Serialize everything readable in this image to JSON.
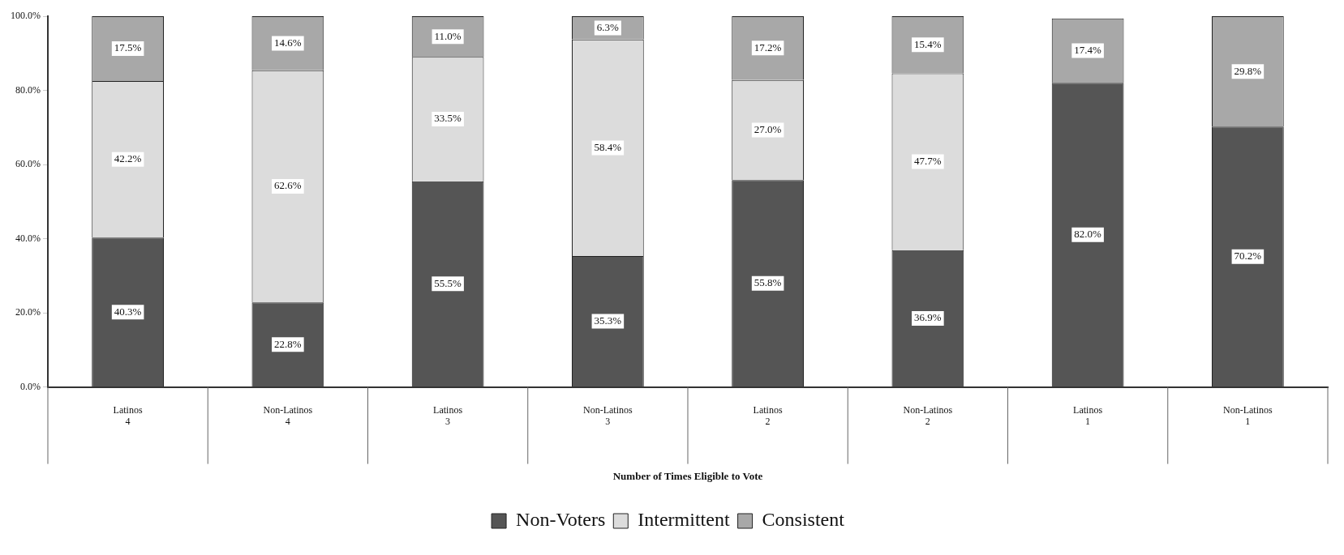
{
  "chart_data": {
    "type": "bar",
    "stacked": true,
    "xlabel": "Number of Times Eligible to Vote",
    "categories": [
      "Latinos\n4",
      "Non-Latinos\n4",
      "Latinos\n3",
      "Non-Latinos\n3",
      "Latinos\n2",
      "Non-Latinos\n2",
      "Latinos\n1",
      "Non-Latinos\n1"
    ],
    "series": [
      {
        "name": "Non-Voters",
        "color": "#555555",
        "values": [
          40.3,
          22.8,
          55.5,
          35.3,
          55.8,
          36.9,
          82.0,
          70.2
        ],
        "value_labels": [
          "40.3%",
          "22.8%",
          "55.5%",
          "35.3%",
          "55.8%",
          "36.9%",
          "82.0%",
          "70.2%"
        ]
      },
      {
        "name": "Intermittent",
        "color": "#dcdcdc",
        "values": [
          42.2,
          62.6,
          33.5,
          58.4,
          27.0,
          47.7,
          null,
          null
        ],
        "value_labels": [
          "42.2%",
          "62.6%",
          "33.5%",
          "58.4%",
          "27.0%",
          "47.7%",
          null,
          null
        ]
      },
      {
        "name": "Consistent",
        "color": "#a8a8a8",
        "values": [
          17.5,
          14.6,
          11.0,
          6.3,
          17.2,
          15.4,
          17.4,
          29.8
        ],
        "value_labels": [
          "17.5%",
          "14.6%",
          "11.0%",
          "6.3%",
          "17.2%",
          "15.4%",
          "17.4%",
          "29.8%"
        ]
      }
    ],
    "ylim": [
      0,
      100
    ],
    "yticks": [
      {
        "value": 0,
        "label": "0.0%"
      },
      {
        "value": 20,
        "label": "20.0%"
      },
      {
        "value": 40,
        "label": "40.0%"
      },
      {
        "value": 60,
        "label": "60.0%"
      },
      {
        "value": 80,
        "label": "80.0%"
      },
      {
        "value": 100,
        "label": "100.0%"
      }
    ],
    "grid": false,
    "legend": "bottom"
  }
}
